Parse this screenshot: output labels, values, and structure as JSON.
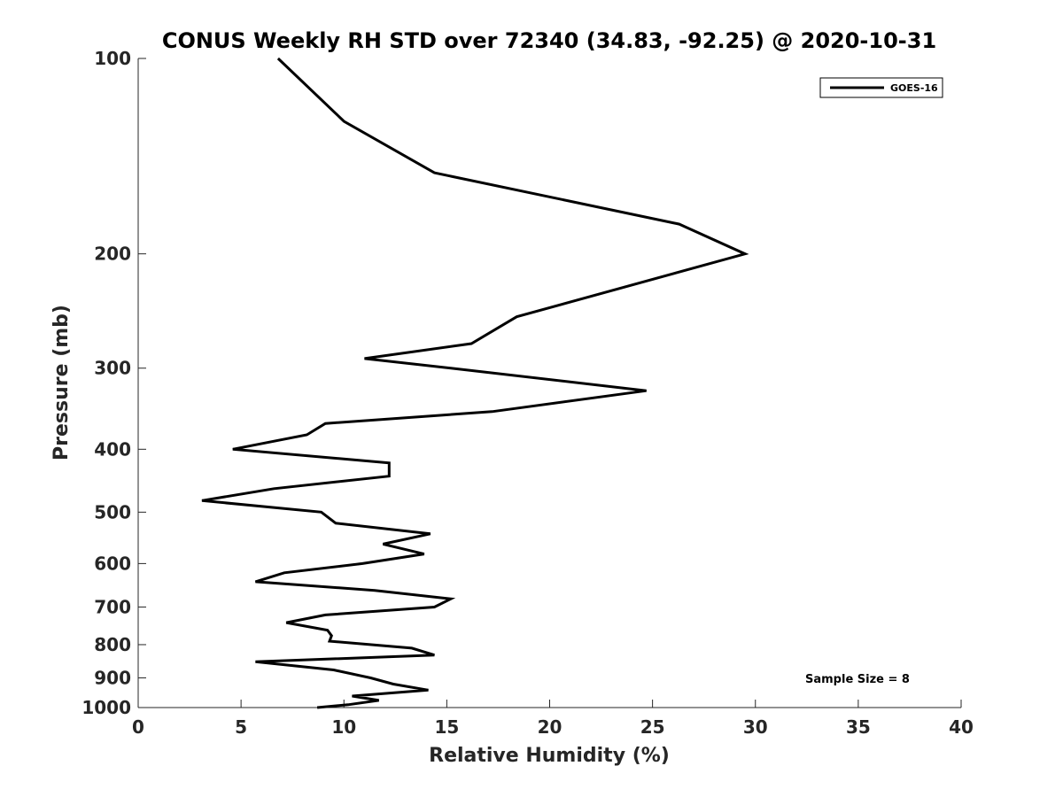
{
  "chart_data": {
    "type": "line",
    "title": "CONUS Weekly RH STD over 72340 (34.83, -92.25) @ 2020-10-31",
    "xlabel": "Relative Humidity (%)",
    "ylabel": "Pressure (mb)",
    "xlim": [
      0,
      40
    ],
    "ylim": [
      100,
      1000
    ],
    "y_scale": "log",
    "y_inverted": true,
    "grid": false,
    "legend_position": "top-right",
    "x_ticks": [
      0,
      5,
      10,
      15,
      20,
      25,
      30,
      35,
      40
    ],
    "y_ticks": [
      100,
      200,
      300,
      400,
      500,
      600,
      700,
      800,
      900,
      1000
    ],
    "annotation": "Sample Size = 8",
    "series": [
      {
        "name": "GOES-16",
        "color": "#000000",
        "points": [
          [
            6.8,
            100
          ],
          [
            10.0,
            125
          ],
          [
            14.4,
            150
          ],
          [
            26.3,
            180
          ],
          [
            29.5,
            200
          ],
          [
            18.4,
            250
          ],
          [
            16.2,
            275
          ],
          [
            11.0,
            290
          ],
          [
            15.2,
            300
          ],
          [
            24.7,
            325
          ],
          [
            17.2,
            350
          ],
          [
            9.1,
            365
          ],
          [
            8.2,
            380
          ],
          [
            4.6,
            400
          ],
          [
            12.2,
            420
          ],
          [
            12.2,
            440
          ],
          [
            6.6,
            460
          ],
          [
            3.1,
            480
          ],
          [
            8.9,
            500
          ],
          [
            9.6,
            520
          ],
          [
            14.2,
            540
          ],
          [
            11.9,
            560
          ],
          [
            13.9,
            580
          ],
          [
            10.9,
            600
          ],
          [
            7.1,
            620
          ],
          [
            5.7,
            640
          ],
          [
            11.5,
            660
          ],
          [
            15.2,
            680
          ],
          [
            14.4,
            700
          ],
          [
            9.1,
            720
          ],
          [
            7.2,
            740
          ],
          [
            9.2,
            760
          ],
          [
            9.4,
            775
          ],
          [
            9.3,
            790
          ],
          [
            13.3,
            810
          ],
          [
            14.4,
            830
          ],
          [
            5.7,
            850
          ],
          [
            9.5,
            875
          ],
          [
            11.3,
            900
          ],
          [
            12.4,
            920
          ],
          [
            14.1,
            940
          ],
          [
            10.4,
            960
          ],
          [
            11.7,
            975
          ],
          [
            10.2,
            990
          ],
          [
            8.7,
            1000
          ]
        ]
      }
    ]
  }
}
